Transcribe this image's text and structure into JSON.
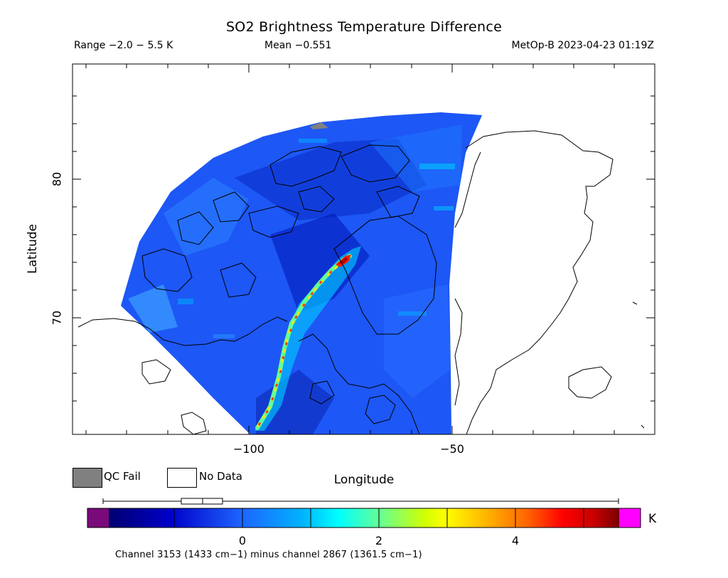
{
  "header": {
    "title": "SO2 Brightness Temperature Difference",
    "range": "Range −2.0 − 5.5 K",
    "mean": "Mean −0.551",
    "satellite_time": "MetOp-B 2023-04-23 01:19Z"
  },
  "axes": {
    "ylabel": "Latitude",
    "xlabel": "Longitude",
    "yticks": [
      "80",
      "70"
    ],
    "xticks": [
      "−100",
      "−50"
    ]
  },
  "legend": {
    "qc_fail": "QC Fail",
    "no_data": "No Data"
  },
  "colorbar": {
    "ticks": [
      "0",
      "2",
      "4"
    ],
    "unit": "K",
    "channel_note": "Channel 3153 (1433 cm−1) minus channel 2867 (1361.5 cm−1)",
    "colors": [
      "#7a0a7a",
      "#000070",
      "#0000c8",
      "#1e64ff",
      "#00b4ff",
      "#00ffff",
      "#64ff96",
      "#d2ff00",
      "#ffff00",
      "#ffb400",
      "#ff6400",
      "#ff0000",
      "#c80000",
      "#7a0000",
      "#ff00ff"
    ],
    "missing_color": "#808080"
  }
}
